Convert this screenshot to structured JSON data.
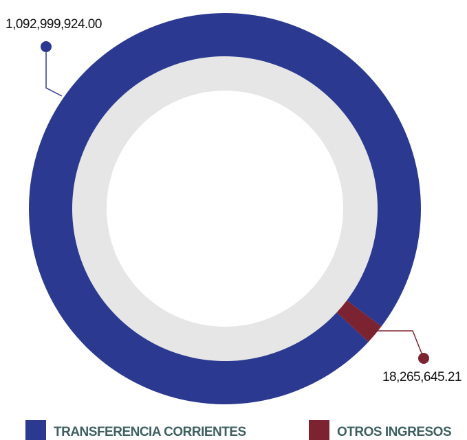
{
  "chart_data": {
    "type": "donut",
    "categories": [
      "TRANSFERENCIA CORRIENTES",
      "OTROS INGRESOS"
    ],
    "values": [
      1092999924.0,
      18265645.21
    ],
    "value_labels": [
      "1,092,999,924.00",
      "18,265,645.21"
    ],
    "colors": [
      "#2b3990",
      "#7b2331"
    ],
    "legend": "bottom"
  }
}
